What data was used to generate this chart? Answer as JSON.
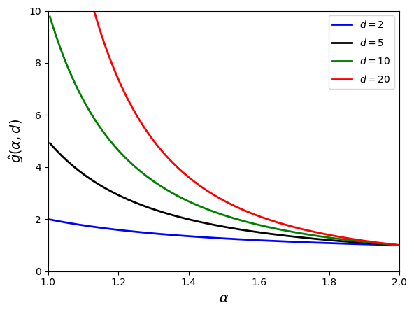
{
  "d_values": [
    2,
    5,
    10,
    20
  ],
  "colors": [
    "blue",
    "black",
    "green",
    "red"
  ],
  "labels": [
    "$d = 2$",
    "$d = 5$",
    "$d = 10$",
    "$d = 20$"
  ],
  "alpha_start": 1.005,
  "alpha_end": 2.0,
  "n_points": 1000,
  "xlim": [
    1.0,
    2.0
  ],
  "ylim": [
    0,
    10
  ],
  "xlabel": "$\\alpha$",
  "ylabel": "$\\hat{g}(\\alpha, d)$",
  "xticks": [
    1.0,
    1.2,
    1.4,
    1.6,
    1.8,
    2.0
  ],
  "yticks": [
    0,
    2,
    4,
    6,
    8,
    10
  ],
  "legend_loc": "upper right",
  "linewidth": 2.0
}
